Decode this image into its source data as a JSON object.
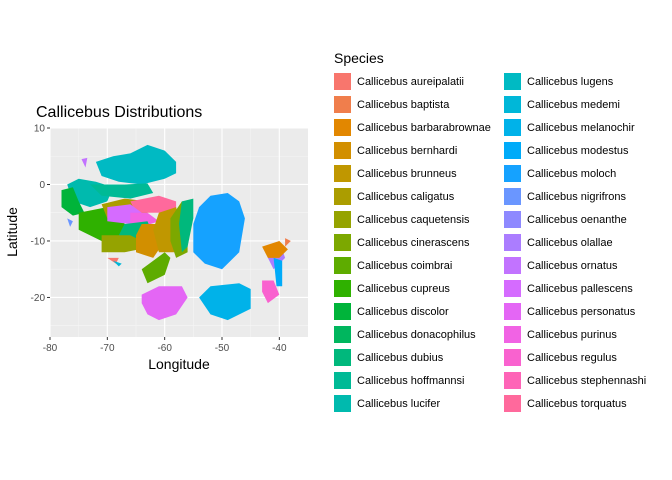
{
  "chart_data": {
    "type": "map",
    "title": "Callicebus Distributions",
    "xlabel": "Longitude",
    "ylabel": "Latitude",
    "xlim": [
      -80,
      -35
    ],
    "ylim": [
      -27,
      10
    ],
    "xticks": [
      -80,
      -70,
      -60,
      -50,
      -40
    ],
    "yticks": [
      -20,
      -10,
      0,
      10
    ],
    "xtick_labels": [
      "-80",
      "-70",
      "-60",
      "-50",
      "-40"
    ],
    "ytick_labels": [
      "-20",
      "-10",
      "0",
      "10"
    ],
    "grid": true,
    "legend_position": "right",
    "legend_title": "Species",
    "legend_columns": 2,
    "series": [
      {
        "name": "Callicebus aureipalatii",
        "color": "#F8766D"
      },
      {
        "name": "Callicebus baptista",
        "color": "#F07E4C"
      },
      {
        "name": "Callicebus barbarabrownae",
        "color": "#E28700"
      },
      {
        "name": "Callicebus bernhardi",
        "color": "#D28F00"
      },
      {
        "name": "Callicebus brunneus",
        "color": "#C09700"
      },
      {
        "name": "Callicebus caligatus",
        "color": "#AB9D00"
      },
      {
        "name": "Callicebus caquetensis",
        "color": "#95A300"
      },
      {
        "name": "Callicebus cinerascens",
        "color": "#7CA800"
      },
      {
        "name": "Callicebus coimbrai",
        "color": "#5EAC00"
      },
      {
        "name": "Callicebus cupreus",
        "color": "#2FB100"
      },
      {
        "name": "Callicebus discolor",
        "color": "#00B43A"
      },
      {
        "name": "Callicebus donacophilus",
        "color": "#00B65E"
      },
      {
        "name": "Callicebus dubius",
        "color": "#00B87C"
      },
      {
        "name": "Callicebus hoffmannsi",
        "color": "#00BA96"
      },
      {
        "name": "Callicebus lucifer",
        "color": "#00BAAE"
      },
      {
        "name": "Callicebus lugens",
        "color": "#00BAC3"
      },
      {
        "name": "Callicebus medemi",
        "color": "#00B7D8"
      },
      {
        "name": "Callicebus melanochir",
        "color": "#00B2E9"
      },
      {
        "name": "Callicebus modestus",
        "color": "#00ABF9"
      },
      {
        "name": "Callicebus moloch",
        "color": "#15A2FF"
      },
      {
        "name": "Callicebus nigrifrons",
        "color": "#6A96FF"
      },
      {
        "name": "Callicebus oenanthe",
        "color": "#8E89FF"
      },
      {
        "name": "Callicebus olallae",
        "color": "#AB7DFF"
      },
      {
        "name": "Callicebus ornatus",
        "color": "#C273FF"
      },
      {
        "name": "Callicebus pallescens",
        "color": "#D56BFF"
      },
      {
        "name": "Callicebus personatus",
        "color": "#E466F5"
      },
      {
        "name": "Callicebus purinus",
        "color": "#F163E4"
      },
      {
        "name": "Callicebus regulus",
        "color": "#F962CF"
      },
      {
        "name": "Callicebus stephennashi",
        "color": "#FE64B7"
      },
      {
        "name": "Callicebus torquatus",
        "color": "#FF699C"
      }
    ],
    "regions": [
      {
        "species": "Callicebus lugens",
        "polygon": [
          [
            -72,
            4
          ],
          [
            -69,
            5
          ],
          [
            -66,
            5.5
          ],
          [
            -63,
            7
          ],
          [
            -60,
            6
          ],
          [
            -58,
            4
          ],
          [
            -58,
            2
          ],
          [
            -60,
            1
          ],
          [
            -64,
            0
          ],
          [
            -68,
            0.5
          ],
          [
            -71,
            1.5
          ]
        ]
      },
      {
        "species": "Callicebus lucifer",
        "polygon": [
          [
            -77,
            0
          ],
          [
            -75,
            1
          ],
          [
            -72,
            0.5
          ],
          [
            -69,
            -0.5
          ],
          [
            -70,
            -3
          ],
          [
            -73,
            -4
          ],
          [
            -76,
            -3
          ]
        ]
      },
      {
        "species": "Callicebus discolor",
        "polygon": [
          [
            -78,
            -1
          ],
          [
            -76,
            -0.5
          ],
          [
            -75,
            -3
          ],
          [
            -74,
            -5
          ],
          [
            -76,
            -5.5
          ],
          [
            -78,
            -4
          ]
        ]
      },
      {
        "species": "Callicebus ornatus",
        "polygon": [
          [
            -74.5,
            4.5
          ],
          [
            -73.5,
            4.7
          ],
          [
            -73.8,
            3
          ]
        ]
      },
      {
        "species": "Callicebus nigrifrons",
        "polygon": [
          [
            -77,
            -6
          ],
          [
            -76,
            -6.5
          ],
          [
            -76.5,
            -7.5
          ]
        ]
      },
      {
        "species": "Callicebus cupreus",
        "polygon": [
          [
            -75,
            -5
          ],
          [
            -70,
            -4
          ],
          [
            -67,
            -5
          ],
          [
            -67,
            -9
          ],
          [
            -71,
            -10
          ],
          [
            -75,
            -8
          ]
        ]
      },
      {
        "species": "Callicebus caligatus",
        "polygon": [
          [
            -71,
            -3.5
          ],
          [
            -67,
            -2.5
          ],
          [
            -63,
            -3
          ],
          [
            -63,
            -6
          ],
          [
            -66,
            -7
          ],
          [
            -70,
            -6
          ]
        ]
      },
      {
        "species": "Callicebus torquatus",
        "polygon": [
          [
            -66,
            -3
          ],
          [
            -61,
            -2
          ],
          [
            -58,
            -3
          ],
          [
            -58,
            -5
          ],
          [
            -61,
            -5
          ],
          [
            -65,
            -5
          ]
        ]
      },
      {
        "species": "Callicebus pallescens",
        "polygon": [
          [
            -70,
            -4
          ],
          [
            -66,
            -3.5
          ],
          [
            -64,
            -5
          ],
          [
            -66,
            -7
          ],
          [
            -70,
            -6.5
          ]
        ]
      },
      {
        "species": "Callicebus purinus",
        "polygon": [
          [
            -66,
            -5
          ],
          [
            -63,
            -5
          ],
          [
            -61,
            -6.5
          ],
          [
            -64,
            -7.5
          ],
          [
            -66,
            -7
          ]
        ]
      },
      {
        "species": "Callicebus dubius",
        "polygon": [
          [
            -67,
            -7
          ],
          [
            -63,
            -6.5
          ],
          [
            -62,
            -9
          ],
          [
            -66,
            -10
          ],
          [
            -68,
            -9
          ]
        ]
      },
      {
        "species": "Callicebus caquetensis",
        "polygon": [
          [
            -71,
            -9
          ],
          [
            -66,
            -9
          ],
          [
            -62,
            -11
          ],
          [
            -67,
            -12
          ],
          [
            -71,
            -12
          ]
        ]
      },
      {
        "species": "Callicebus bernhardi",
        "polygon": [
          [
            -64,
            -7
          ],
          [
            -61,
            -7
          ],
          [
            -60,
            -10
          ],
          [
            -62,
            -13
          ],
          [
            -65,
            -12
          ],
          [
            -65,
            -9
          ]
        ]
      },
      {
        "species": "Callicebus brunneus",
        "polygon": [
          [
            -61,
            -5
          ],
          [
            -58,
            -4
          ],
          [
            -57,
            -8
          ],
          [
            -58,
            -12
          ],
          [
            -61,
            -12
          ],
          [
            -62,
            -8
          ]
        ]
      },
      {
        "species": "Callicebus cinerascens",
        "polygon": [
          [
            -59,
            -6
          ],
          [
            -57,
            -3
          ],
          [
            -56,
            -5
          ],
          [
            -56,
            -12
          ],
          [
            -58,
            -13
          ],
          [
            -59,
            -10
          ]
        ]
      },
      {
        "species": "Callicebus dubius",
        "polygon": [
          [
            -57,
            -3
          ],
          [
            -55,
            -2.5
          ],
          [
            -55,
            -6
          ],
          [
            -56,
            -11
          ],
          [
            -57,
            -12
          ],
          [
            -57.5,
            -7
          ]
        ]
      },
      {
        "species": "Callicebus hoffmannsi",
        "polygon": [
          [
            -73,
            0
          ],
          [
            -67,
            0
          ],
          [
            -63,
            0.2
          ],
          [
            -62,
            -1.5
          ],
          [
            -66,
            -2.5
          ],
          [
            -71,
            -2
          ]
        ]
      },
      {
        "species": "Callicebus moloch",
        "polygon": [
          [
            -52,
            -2
          ],
          [
            -49,
            -1.5
          ],
          [
            -47,
            -3
          ],
          [
            -46,
            -6
          ],
          [
            -47,
            -12
          ],
          [
            -50,
            -15
          ],
          [
            -53,
            -14
          ],
          [
            -55,
            -12
          ],
          [
            -55,
            -7
          ],
          [
            -54,
            -4
          ]
        ]
      },
      {
        "species": "Callicebus aureipalatii",
        "polygon": [
          [
            -70,
            -13
          ],
          [
            -68,
            -13
          ],
          [
            -68.5,
            -14
          ]
        ]
      },
      {
        "species": "Callicebus medemi",
        "polygon": [
          [
            -69,
            -13.5
          ],
          [
            -68,
            -14.5
          ],
          [
            -67.5,
            -14
          ]
        ]
      },
      {
        "species": "Callicebus coimbrai",
        "polygon": [
          [
            -64,
            -15
          ],
          [
            -60,
            -12
          ],
          [
            -59,
            -13
          ],
          [
            -60,
            -16
          ],
          [
            -63,
            -17.5
          ]
        ]
      },
      {
        "species": "Callicebus personatus",
        "polygon": [
          [
            -64,
            -19.5
          ],
          [
            -61,
            -18
          ],
          [
            -57,
            -18
          ],
          [
            -56,
            -20
          ],
          [
            -58,
            -23
          ],
          [
            -61,
            -24
          ],
          [
            -63,
            -23
          ],
          [
            -64,
            -21
          ]
        ]
      },
      {
        "species": "Callicebus melanochir",
        "polygon": [
          [
            -52,
            -18
          ],
          [
            -47,
            -17.5
          ],
          [
            -45,
            -18.5
          ],
          [
            -45,
            -22
          ],
          [
            -49,
            -24
          ],
          [
            -52,
            -23
          ],
          [
            -54,
            -20
          ]
        ]
      },
      {
        "species": "Callicebus regulus",
        "polygon": [
          [
            -43,
            -17
          ],
          [
            -41,
            -17
          ],
          [
            -40,
            -19.5
          ],
          [
            -42,
            -21
          ],
          [
            -43,
            -19
          ]
        ]
      },
      {
        "species": "Callicebus olallae",
        "polygon": [
          [
            -42,
            -11
          ],
          [
            -40,
            -10
          ],
          [
            -39,
            -13
          ],
          [
            -41,
            -15
          ],
          [
            -42,
            -13
          ]
        ]
      },
      {
        "species": "Callicebus barbarabrownae",
        "polygon": [
          [
            -43,
            -11
          ],
          [
            -40,
            -10
          ],
          [
            -38.5,
            -11.5
          ],
          [
            -40,
            -13
          ],
          [
            -42,
            -13
          ]
        ]
      },
      {
        "species": "Callicebus baptista",
        "polygon": [
          [
            -39,
            -9.5
          ],
          [
            -38,
            -10
          ],
          [
            -39,
            -11
          ]
        ]
      },
      {
        "species": "Callicebus modestus",
        "polygon": [
          [
            -41,
            -13
          ],
          [
            -39.5,
            -13.5
          ],
          [
            -39.5,
            -18
          ],
          [
            -40.5,
            -18
          ]
        ]
      }
    ]
  }
}
